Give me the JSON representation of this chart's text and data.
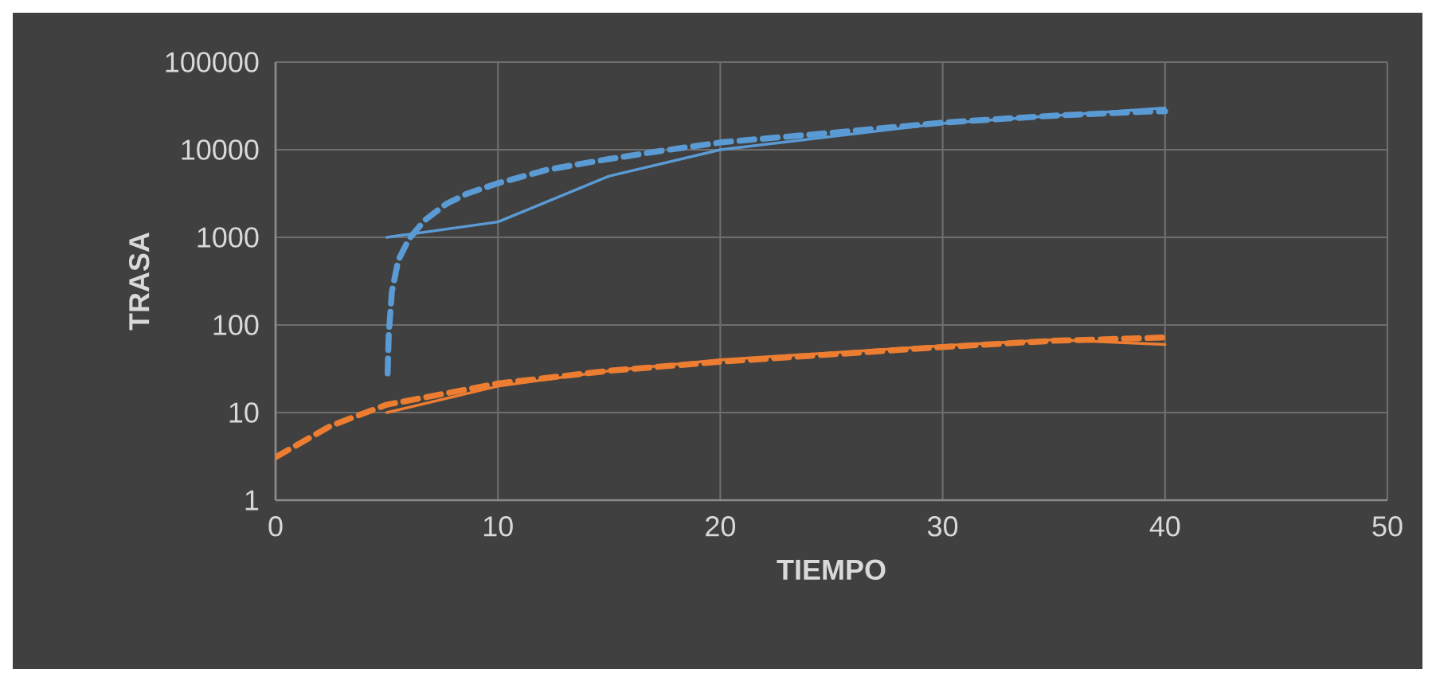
{
  "chart_data": {
    "type": "line",
    "xlabel": "TIEMPO",
    "ylabel": "TRASA",
    "log": "y",
    "grid": true,
    "xlim": [
      0,
      50
    ],
    "xticks": [
      0,
      10,
      20,
      30,
      40,
      50
    ],
    "ylim": [
      1,
      100000
    ],
    "yticks": [
      1,
      10,
      100,
      1000,
      10000,
      100000
    ],
    "series": [
      {
        "color": "#5b9bd5",
        "line_style": "solid",
        "x": [
          5,
          10,
          15,
          20,
          30,
          40
        ],
        "values": [
          1000,
          1500,
          5000,
          10000,
          20000,
          30000
        ]
      },
      {
        "color": "#5b9bd5",
        "line_style": "dashed",
        "x": [
          5.04,
          5.09,
          5.23,
          5.52,
          6.0,
          6.7,
          7.67,
          8.6,
          10,
          12.2,
          14.6,
          17.2,
          20.1,
          25,
          30.1,
          35,
          39.2,
          40
        ],
        "values": [
          28,
          78,
          240,
          550,
          960,
          1560,
          2400,
          3150,
          4150,
          5900,
          7550,
          9600,
          12200,
          15600,
          20500,
          24500,
          27300,
          27500
        ]
      },
      {
        "color": "#ed7d31",
        "line_style": "solid",
        "x": [
          5,
          10,
          15,
          20,
          30,
          35,
          40
        ],
        "values": [
          10,
          20,
          30,
          40,
          58,
          68,
          60
        ]
      },
      {
        "color": "#ed7d31",
        "line_style": "dashed",
        "x": [
          0,
          2.5,
          5,
          10,
          15,
          20,
          30,
          35,
          40
        ],
        "values": [
          3.1,
          7.1,
          12.3,
          21.5,
          30,
          38,
          56,
          66,
          72
        ]
      }
    ]
  }
}
